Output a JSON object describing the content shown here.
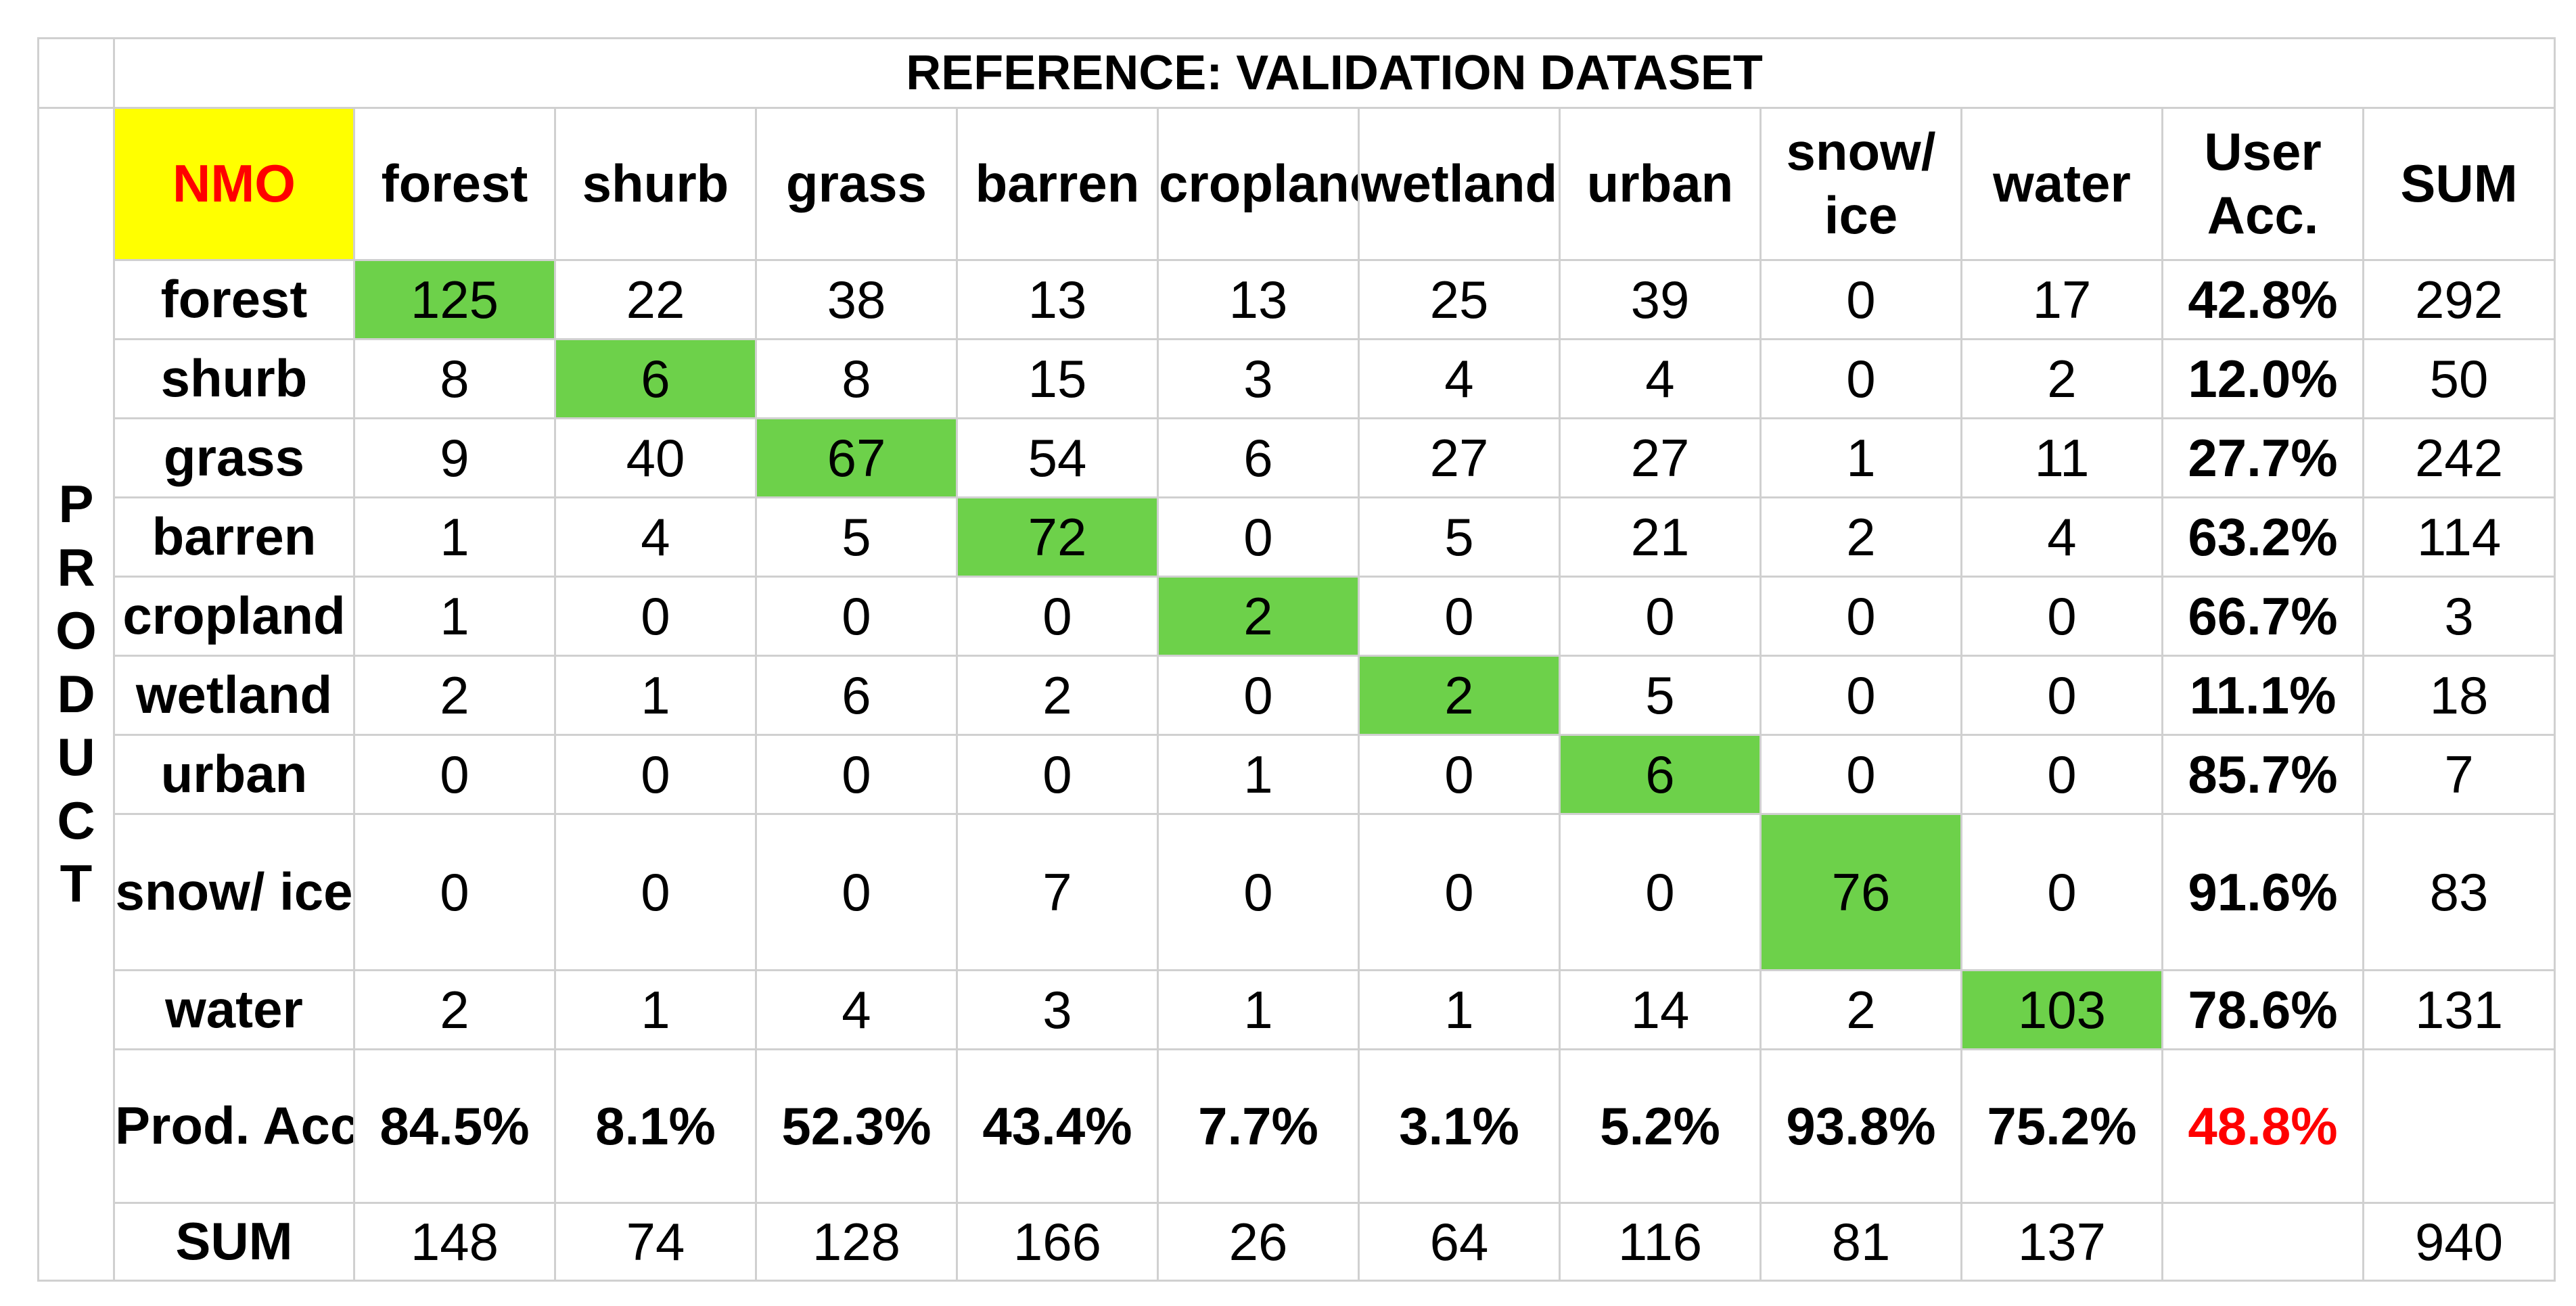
{
  "title": "REFERENCE: VALIDATION DATASET",
  "product_label": [
    "P",
    "R",
    "O",
    "D",
    "U",
    "C",
    "T"
  ],
  "corner": "NMO",
  "column_headers": [
    "forest",
    "shurb",
    "grass",
    "barren",
    "cropland",
    "wetland",
    "urban",
    "snow/ ice",
    "water"
  ],
  "user_acc_header": "User Acc.",
  "sum_header": "SUM",
  "rows": [
    {
      "label": "forest",
      "values": [
        "125",
        "22",
        "38",
        "13",
        "13",
        "25",
        "39",
        "0",
        "17"
      ],
      "user_acc": "42.8%",
      "sum": "292"
    },
    {
      "label": "shurb",
      "values": [
        "8",
        "6",
        "8",
        "15",
        "3",
        "4",
        "4",
        "0",
        "2"
      ],
      "user_acc": "12.0%",
      "sum": "50"
    },
    {
      "label": "grass",
      "values": [
        "9",
        "40",
        "67",
        "54",
        "6",
        "27",
        "27",
        "1",
        "11"
      ],
      "user_acc": "27.7%",
      "sum": "242"
    },
    {
      "label": "barren",
      "values": [
        "1",
        "4",
        "5",
        "72",
        "0",
        "5",
        "21",
        "2",
        "4"
      ],
      "user_acc": "63.2%",
      "sum": "114"
    },
    {
      "label": "cropland",
      "values": [
        "1",
        "0",
        "0",
        "0",
        "2",
        "0",
        "0",
        "0",
        "0"
      ],
      "user_acc": "66.7%",
      "sum": "3"
    },
    {
      "label": "wetland",
      "values": [
        "2",
        "1",
        "6",
        "2",
        "0",
        "2",
        "5",
        "0",
        "0"
      ],
      "user_acc": "11.1%",
      "sum": "18"
    },
    {
      "label": "urban",
      "values": [
        "0",
        "0",
        "0",
        "0",
        "1",
        "0",
        "6",
        "0",
        "0"
      ],
      "user_acc": "85.7%",
      "sum": "7"
    },
    {
      "label": "snow/ ice",
      "values": [
        "0",
        "0",
        "0",
        "7",
        "0",
        "0",
        "0",
        "76",
        "0"
      ],
      "user_acc": "91.6%",
      "sum": "83"
    },
    {
      "label": "water",
      "values": [
        "2",
        "1",
        "4",
        "3",
        "1",
        "1",
        "14",
        "2",
        "103"
      ],
      "user_acc": "78.6%",
      "sum": "131"
    }
  ],
  "prod_acc": {
    "label": "Prod. Acc",
    "values": [
      "84.5%",
      "8.1%",
      "52.3%",
      "43.4%",
      "7.7%",
      "3.1%",
      "5.2%",
      "93.8%",
      "75.2%"
    ],
    "overall": "48.8%"
  },
  "sum_row": {
    "label": "SUM",
    "values": [
      "148",
      "74",
      "128",
      "166",
      "26",
      "64",
      "116",
      "81",
      "137"
    ],
    "total": "940"
  },
  "colors": {
    "diagonal": "#6dd14a",
    "corner_bg": "#ffff00",
    "corner_text": "#ff0000",
    "overall_text": "#ff0000",
    "grid": "#d0d0d0"
  }
}
